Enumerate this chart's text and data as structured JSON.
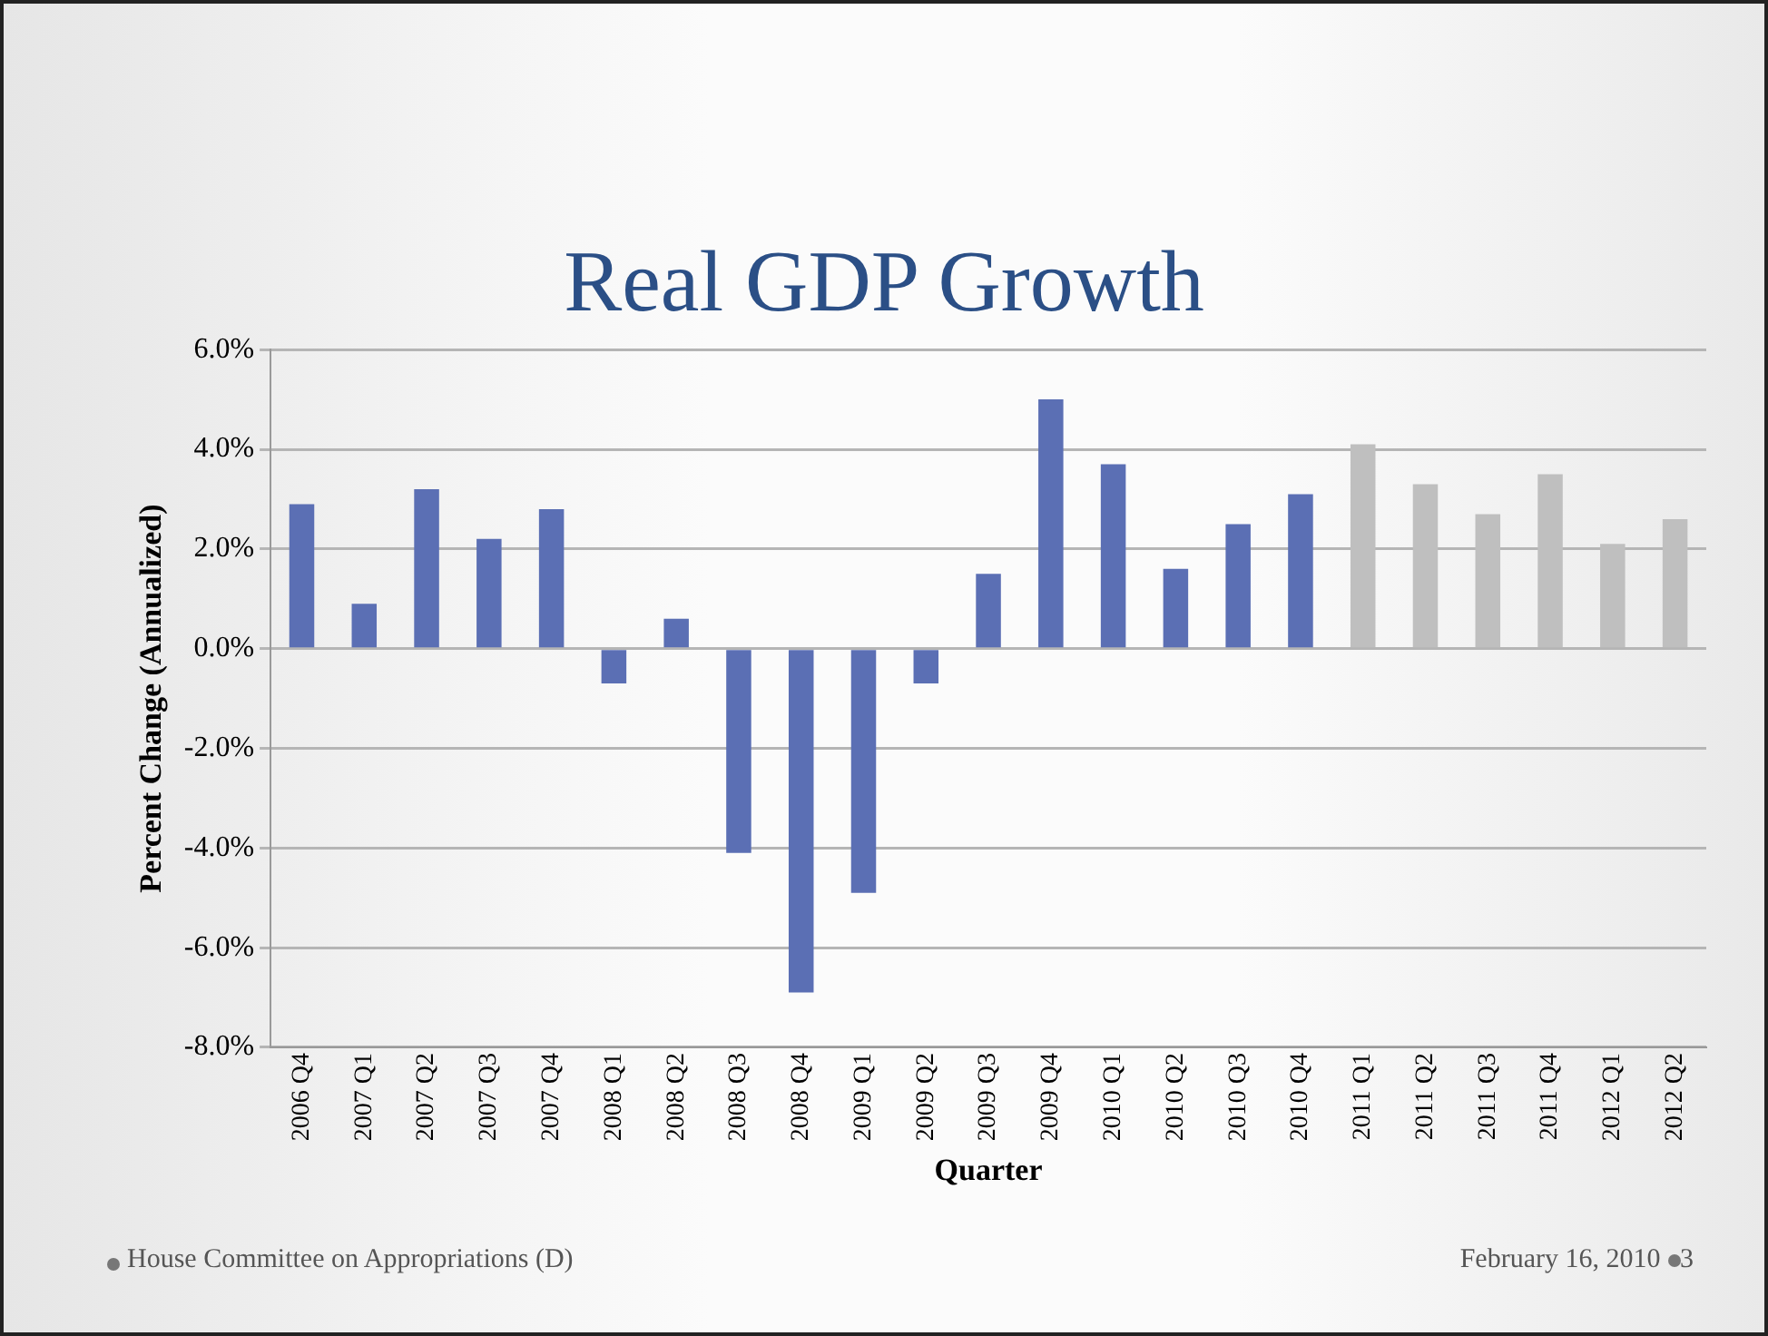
{
  "chart_data": {
    "type": "bar",
    "title": "Real GDP Growth",
    "xlabel": "Quarter",
    "ylabel": "Percent Change (Annualized)",
    "categories": [
      "2006 Q4",
      "2007 Q1",
      "2007 Q2",
      "2007 Q3",
      "2007 Q4",
      "2008 Q1",
      "2008 Q2",
      "2008 Q3",
      "2008 Q4",
      "2009 Q1",
      "2009 Q2",
      "2009 Q3",
      "2009 Q4",
      "2010 Q1",
      "2010 Q2",
      "2010 Q3",
      "2010 Q4",
      "2011 Q1",
      "2011 Q2",
      "2011 Q3",
      "2011 Q4",
      "2012 Q1",
      "2012 Q2"
    ],
    "values": [
      2.9,
      0.9,
      3.2,
      2.2,
      2.8,
      -0.7,
      0.6,
      -4.1,
      -6.9,
      -4.9,
      -0.7,
      1.5,
      5.0,
      3.7,
      1.6,
      2.5,
      3.1,
      4.1,
      3.3,
      2.7,
      3.5,
      2.1,
      2.6
    ],
    "colors": [
      "#5b6fb4",
      "#5b6fb4",
      "#5b6fb4",
      "#5b6fb4",
      "#5b6fb4",
      "#5b6fb4",
      "#5b6fb4",
      "#5b6fb4",
      "#5b6fb4",
      "#5b6fb4",
      "#5b6fb4",
      "#5b6fb4",
      "#5b6fb4",
      "#5b6fb4",
      "#5b6fb4",
      "#5b6fb4",
      "#5b6fb4",
      "#bfbfbf",
      "#bfbfbf",
      "#bfbfbf",
      "#bfbfbf",
      "#bfbfbf",
      "#bfbfbf"
    ],
    "ylim": [
      -8,
      6
    ],
    "yticks": [
      {
        "value": -8,
        "label": "-8.0%"
      },
      {
        "value": -6,
        "label": "-6.0%"
      },
      {
        "value": -4,
        "label": "-4.0%"
      },
      {
        "value": -2,
        "label": "-2.0%"
      },
      {
        "value": 0,
        "label": "0.0%"
      },
      {
        "value": 2,
        "label": "2.0%"
      },
      {
        "value": 4,
        "label": "4.0%"
      },
      {
        "value": 6,
        "label": "6.0%"
      }
    ],
    "grid": "y",
    "legend": false,
    "annotations": [
      "House Committee on Appropriations (D)",
      "February 16, 2010",
      "3"
    ]
  }
}
